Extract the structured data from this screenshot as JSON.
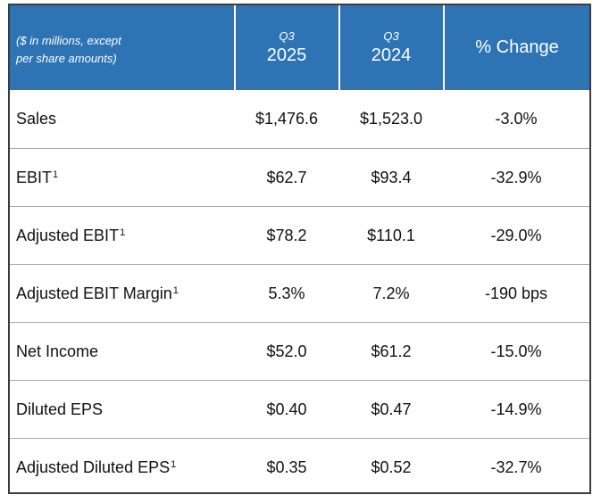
{
  "table": {
    "header": {
      "note_line1": "($ in millions, except",
      "note_line2": "per share amounts)",
      "col1_quarter": "Q3",
      "col1_year": "2025",
      "col2_quarter": "Q3",
      "col2_year": "2024",
      "col3_label": "% Change"
    },
    "rows": [
      {
        "label": "Sales",
        "footnote": "",
        "q3_2025": "$1,476.6",
        "q3_2024": "$1,523.0",
        "change": "-3.0%"
      },
      {
        "label": "EBIT",
        "footnote": "1",
        "q3_2025": "$62.7",
        "q3_2024": "$93.4",
        "change": "-32.9%"
      },
      {
        "label": "Adjusted EBIT",
        "footnote": "1",
        "q3_2025": "$78.2",
        "q3_2024": "$110.1",
        "change": "-29.0%"
      },
      {
        "label": "Adjusted EBIT Margin",
        "footnote": "1",
        "q3_2025": "5.3%",
        "q3_2024": "7.2%",
        "change": "-190 bps"
      },
      {
        "label": "Net Income",
        "footnote": "",
        "q3_2025": "$52.0",
        "q3_2024": "$61.2",
        "change": "-15.0%"
      },
      {
        "label": "Diluted EPS",
        "footnote": "",
        "q3_2025": "$0.40",
        "q3_2024": "$0.47",
        "change": "-14.9%"
      },
      {
        "label": "Adjusted Diluted EPS",
        "footnote": "1",
        "q3_2025": "$0.35",
        "q3_2024": "$0.52",
        "change": "-32.7%"
      }
    ]
  },
  "colors": {
    "header_bg": "#2e74b5",
    "header_text": "#ffffff",
    "border": "#3c3c3c",
    "row_divider": "#a8a8a8"
  }
}
